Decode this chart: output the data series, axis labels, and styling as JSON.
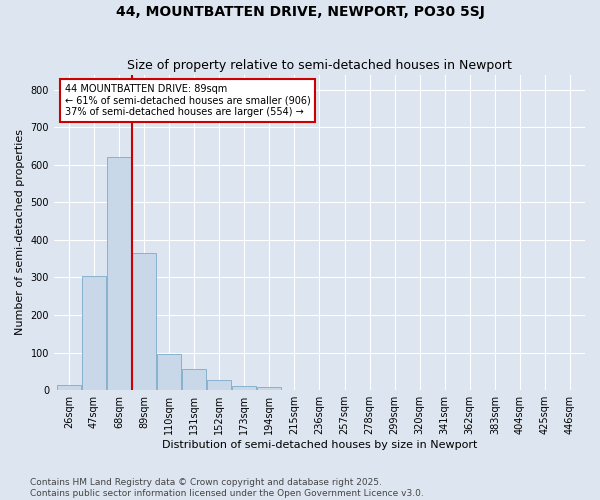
{
  "title": "44, MOUNTBATTEN DRIVE, NEWPORT, PO30 5SJ",
  "subtitle": "Size of property relative to semi-detached houses in Newport",
  "xlabel": "Distribution of semi-detached houses by size in Newport",
  "ylabel": "Number of semi-detached properties",
  "bin_labels": [
    "26sqm",
    "47sqm",
    "68sqm",
    "89sqm",
    "110sqm",
    "131sqm",
    "152sqm",
    "173sqm",
    "194sqm",
    "215sqm",
    "236sqm",
    "257sqm",
    "278sqm",
    "299sqm",
    "320sqm",
    "341sqm",
    "362sqm",
    "383sqm",
    "404sqm",
    "425sqm",
    "446sqm"
  ],
  "bar_values": [
    13,
    305,
    620,
    365,
    96,
    55,
    27,
    12,
    8,
    0,
    0,
    0,
    0,
    0,
    0,
    0,
    0,
    0,
    0,
    0,
    0
  ],
  "bar_color": "#c8d8e8",
  "bar_edge_color": "#7aaac8",
  "vline_bin_index": 3,
  "vline_color": "#cc0000",
  "annotation_text": "44 MOUNTBATTEN DRIVE: 89sqm\n← 61% of semi-detached houses are smaller (906)\n37% of semi-detached houses are larger (554) →",
  "annotation_box_facecolor": "#ffffff",
  "annotation_box_edgecolor": "#cc0000",
  "ylim": [
    0,
    840
  ],
  "yticks": [
    0,
    100,
    200,
    300,
    400,
    500,
    600,
    700,
    800
  ],
  "background_color": "#dde6f0",
  "plot_background_color": "#dde6f0",
  "grid_color": "#ffffff",
  "title_fontsize": 10,
  "subtitle_fontsize": 9,
  "axis_label_fontsize": 8,
  "tick_fontsize": 7,
  "footer_text": "Contains HM Land Registry data © Crown copyright and database right 2025.\nContains public sector information licensed under the Open Government Licence v3.0.",
  "footer_fontsize": 6.5
}
